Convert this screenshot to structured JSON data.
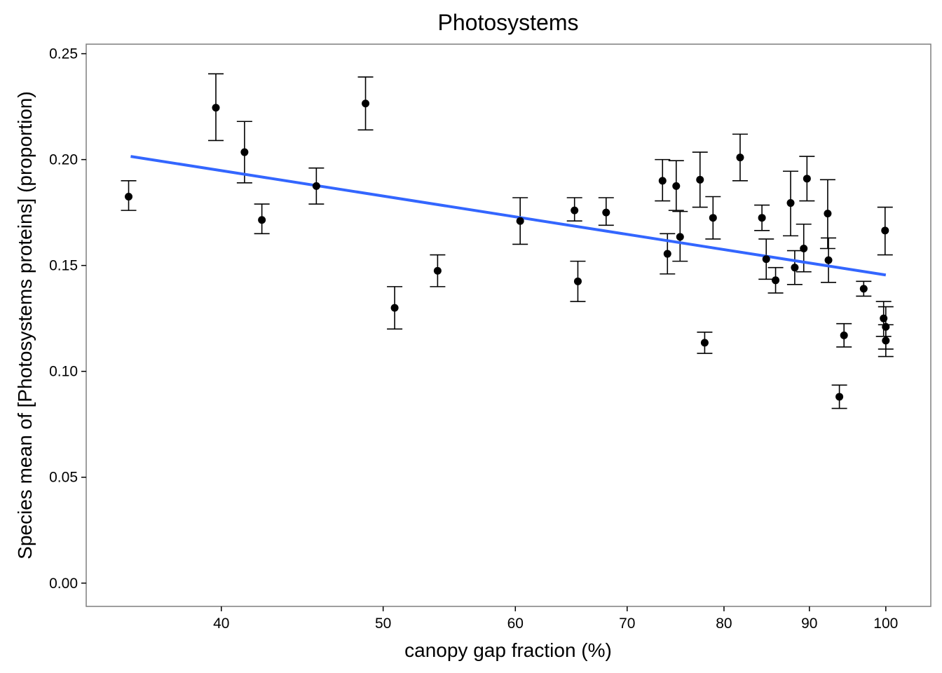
{
  "chart_data": {
    "type": "scatter",
    "title": "Photosystems",
    "xlabel": "canopy gap fraction (%)",
    "ylabel": "Species mean of [Photosystems proteins] (proportion)",
    "x_scale": "log",
    "xlim": [
      33.2,
      106.4
    ],
    "ylim": [
      -0.011,
      0.2545
    ],
    "x_ticks": [
      40,
      50,
      60,
      70,
      80,
      90,
      100
    ],
    "y_ticks": [
      0.0,
      0.05,
      0.1,
      0.15,
      0.2,
      0.25
    ],
    "y_tick_labels": [
      "0.00",
      "0.05",
      "0.10",
      "0.15",
      "0.20",
      "0.25"
    ],
    "grid": false,
    "colors": {
      "points": "#000000",
      "error_bars": "#000000",
      "trend": "#3366ff",
      "frame": "#7f7f7f"
    },
    "series": [
      {
        "points": [
          {
            "x": 35.2,
            "y": 0.1825,
            "lo": 0.176,
            "hi": 0.19
          },
          {
            "x": 39.7,
            "y": 0.2245,
            "lo": 0.209,
            "hi": 0.2405
          },
          {
            "x": 41.3,
            "y": 0.2035,
            "lo": 0.189,
            "hi": 0.218
          },
          {
            "x": 42.3,
            "y": 0.1715,
            "lo": 0.165,
            "hi": 0.179
          },
          {
            "x": 45.6,
            "y": 0.1875,
            "lo": 0.179,
            "hi": 0.196
          },
          {
            "x": 48.8,
            "y": 0.2265,
            "lo": 0.214,
            "hi": 0.239
          },
          {
            "x": 50.8,
            "y": 0.13,
            "lo": 0.12,
            "hi": 0.14
          },
          {
            "x": 53.9,
            "y": 0.1475,
            "lo": 0.14,
            "hi": 0.155
          },
          {
            "x": 60.4,
            "y": 0.171,
            "lo": 0.16,
            "hi": 0.182
          },
          {
            "x": 65.1,
            "y": 0.176,
            "lo": 0.171,
            "hi": 0.182
          },
          {
            "x": 65.4,
            "y": 0.1425,
            "lo": 0.133,
            "hi": 0.152
          },
          {
            "x": 68.0,
            "y": 0.175,
            "lo": 0.169,
            "hi": 0.182
          },
          {
            "x": 73.5,
            "y": 0.19,
            "lo": 0.1805,
            "hi": 0.2
          },
          {
            "x": 74.0,
            "y": 0.1555,
            "lo": 0.146,
            "hi": 0.165
          },
          {
            "x": 74.9,
            "y": 0.1875,
            "lo": 0.176,
            "hi": 0.1995
          },
          {
            "x": 75.3,
            "y": 0.1635,
            "lo": 0.152,
            "hi": 0.1755
          },
          {
            "x": 77.4,
            "y": 0.1905,
            "lo": 0.1775,
            "hi": 0.2035
          },
          {
            "x": 77.9,
            "y": 0.1135,
            "lo": 0.1085,
            "hi": 0.1185
          },
          {
            "x": 78.8,
            "y": 0.1725,
            "lo": 0.1625,
            "hi": 0.1825
          },
          {
            "x": 81.8,
            "y": 0.201,
            "lo": 0.19,
            "hi": 0.212
          },
          {
            "x": 84.3,
            "y": 0.1725,
            "lo": 0.1665,
            "hi": 0.1785
          },
          {
            "x": 84.8,
            "y": 0.153,
            "lo": 0.1435,
            "hi": 0.1625
          },
          {
            "x": 85.9,
            "y": 0.143,
            "lo": 0.137,
            "hi": 0.149
          },
          {
            "x": 87.7,
            "y": 0.1795,
            "lo": 0.164,
            "hi": 0.1945
          },
          {
            "x": 88.2,
            "y": 0.149,
            "lo": 0.141,
            "hi": 0.157
          },
          {
            "x": 89.3,
            "y": 0.158,
            "lo": 0.147,
            "hi": 0.1695
          },
          {
            "x": 89.7,
            "y": 0.191,
            "lo": 0.1805,
            "hi": 0.2015
          },
          {
            "x": 92.3,
            "y": 0.1745,
            "lo": 0.158,
            "hi": 0.1905
          },
          {
            "x": 92.4,
            "y": 0.1525,
            "lo": 0.142,
            "hi": 0.163
          },
          {
            "x": 93.8,
            "y": 0.088,
            "lo": 0.0825,
            "hi": 0.0935
          },
          {
            "x": 94.4,
            "y": 0.117,
            "lo": 0.1115,
            "hi": 0.1225
          },
          {
            "x": 97.0,
            "y": 0.139,
            "lo": 0.1355,
            "hi": 0.1425
          },
          {
            "x": 99.7,
            "y": 0.125,
            "lo": 0.1165,
            "hi": 0.133
          },
          {
            "x": 99.9,
            "y": 0.1665,
            "lo": 0.155,
            "hi": 0.1775
          },
          {
            "x": 100.0,
            "y": 0.121,
            "lo": 0.1105,
            "hi": 0.1305
          },
          {
            "x": 100.0,
            "y": 0.1145,
            "lo": 0.107,
            "hi": 0.122
          }
        ]
      }
    ],
    "trend_line": {
      "method": "linear fit",
      "x": [
        35.3,
        100.0
      ],
      "y": [
        0.2015,
        0.1455
      ]
    }
  }
}
